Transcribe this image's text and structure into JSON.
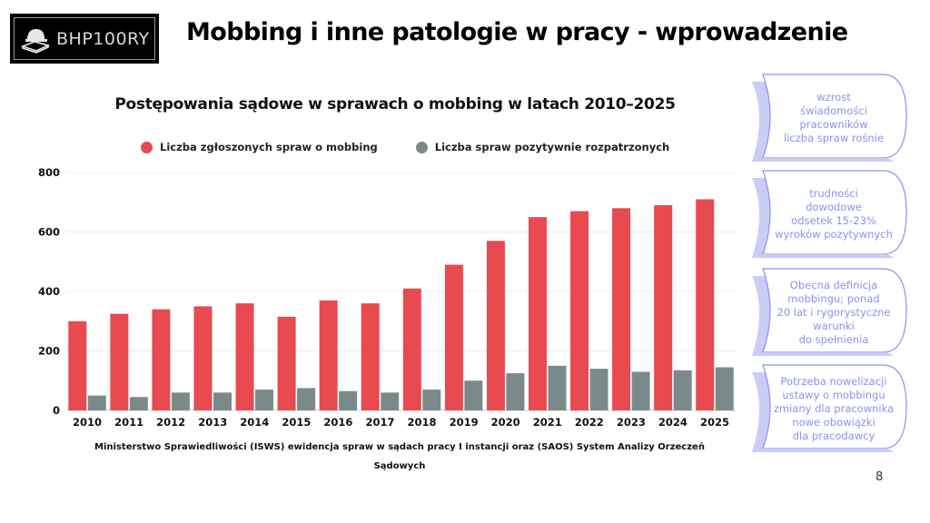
{
  "logo": {
    "text": "BHP100RY",
    "icon": "hard-hat-book-icon"
  },
  "slide_title": "Mobbing i inne patologie w pracy - wprowadzenie",
  "page_number": "8",
  "source_note": "Ministerstwo Sprawiedliwości (ISWS) ewidencja spraw w sądach pracy I instancji oraz (SAOS) System Analizy Orzeczeń Sądowych",
  "side_notes": [
    {
      "text": "wzrost\nświadomości\npracowników\nliczba spraw rośnie"
    },
    {
      "text": "trudności\ndowodowe\nodsetek 15-23%\nwyroków pozytywnych"
    },
    {
      "text": "Obecna definicja\nmobbingu; ponad\n20 lat i rygorystyczne\nwarunki\ndo spełnienia"
    },
    {
      "text": "Potrzeba nowelizacji\nustawy o mobbingu\nzmiany dla pracownika\nnowe obowiązki\ndla pracodawcy"
    }
  ],
  "colors": {
    "red": "#e84a4f",
    "gray": "#7a8a8a",
    "note": "#8a92f0"
  },
  "chart_data": {
    "type": "bar",
    "title": "Postępowania sądowe w sprawach o mobbing w latach 2010–2025",
    "xlabel": "",
    "ylabel": "",
    "ylim": [
      0,
      800
    ],
    "yticks": [
      0,
      200,
      400,
      600,
      800
    ],
    "grid": true,
    "legend_position": "top-center",
    "categories": [
      "2010",
      "2011",
      "2012",
      "2013",
      "2014",
      "2015",
      "2016",
      "2017",
      "2018",
      "2019",
      "2020",
      "2021",
      "2022",
      "2023",
      "2024",
      "2025"
    ],
    "series": [
      {
        "name": "Liczba zgłoszonych spraw o mobbing",
        "color": "#e84a4f",
        "values": [
          300,
          325,
          340,
          350,
          360,
          315,
          370,
          360,
          410,
          490,
          570,
          650,
          670,
          680,
          690,
          710
        ]
      },
      {
        "name": "Liczba spraw pozytywnie rozpatrzonych",
        "color": "#7a8a8a",
        "values": [
          50,
          45,
          60,
          60,
          70,
          75,
          65,
          60,
          70,
          100,
          125,
          150,
          140,
          130,
          135,
          145
        ]
      }
    ]
  }
}
